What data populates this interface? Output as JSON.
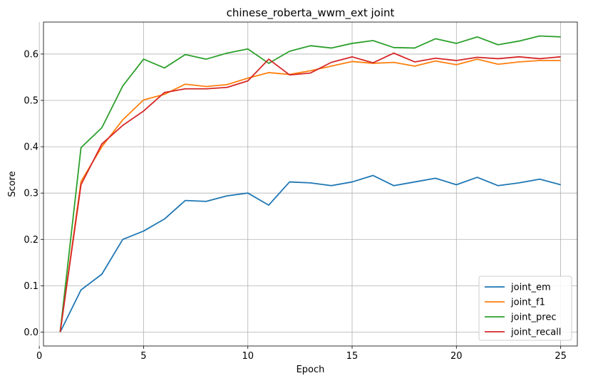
{
  "chart_data": {
    "type": "line",
    "title": "chinese_roberta_wwm_ext joint",
    "xlabel": "Epoch",
    "ylabel": "Score",
    "xlim": [
      0.2,
      25.8
    ],
    "ylim": [
      -0.03,
      0.669
    ],
    "xticks": [
      0,
      5,
      10,
      15,
      20,
      25
    ],
    "yticks": [
      0.0,
      0.1,
      0.2,
      0.3,
      0.4,
      0.5,
      0.6
    ],
    "grid": true,
    "legend_position": "bottom-right",
    "x": [
      1,
      2,
      3,
      4,
      5,
      6,
      7,
      8,
      9,
      10,
      11,
      12,
      13,
      14,
      15,
      16,
      17,
      18,
      19,
      20,
      21,
      22,
      23,
      24,
      25
    ],
    "series": [
      {
        "name": "joint_em",
        "color": "#1f77b4",
        "values": [
          0.0,
          0.091,
          0.125,
          0.2,
          0.218,
          0.244,
          0.284,
          0.282,
          0.294,
          0.3,
          0.274,
          0.324,
          0.322,
          0.316,
          0.324,
          0.338,
          0.316,
          0.324,
          0.332,
          0.318,
          0.334,
          0.316,
          0.322,
          0.33,
          0.318
        ]
      },
      {
        "name": "joint_f1",
        "color": "#ff7f0e",
        "values": [
          0.0,
          0.325,
          0.4,
          0.458,
          0.501,
          0.513,
          0.535,
          0.53,
          0.534,
          0.548,
          0.56,
          0.556,
          0.564,
          0.574,
          0.584,
          0.58,
          0.582,
          0.574,
          0.585,
          0.577,
          0.589,
          0.578,
          0.583,
          0.586,
          0.586
        ]
      },
      {
        "name": "joint_prec",
        "color": "#2ca02c",
        "values": [
          0.0,
          0.398,
          0.441,
          0.531,
          0.589,
          0.57,
          0.599,
          0.589,
          0.602,
          0.611,
          0.58,
          0.606,
          0.618,
          0.613,
          0.623,
          0.629,
          0.614,
          0.613,
          0.633,
          0.623,
          0.637,
          0.62,
          0.628,
          0.639,
          0.637
        ]
      },
      {
        "name": "joint_recall",
        "color": "#d62728",
        "values": [
          0.0,
          0.318,
          0.406,
          0.446,
          0.477,
          0.517,
          0.525,
          0.525,
          0.528,
          0.542,
          0.589,
          0.555,
          0.559,
          0.582,
          0.594,
          0.581,
          0.602,
          0.583,
          0.591,
          0.586,
          0.593,
          0.59,
          0.594,
          0.59,
          0.594
        ]
      }
    ]
  }
}
